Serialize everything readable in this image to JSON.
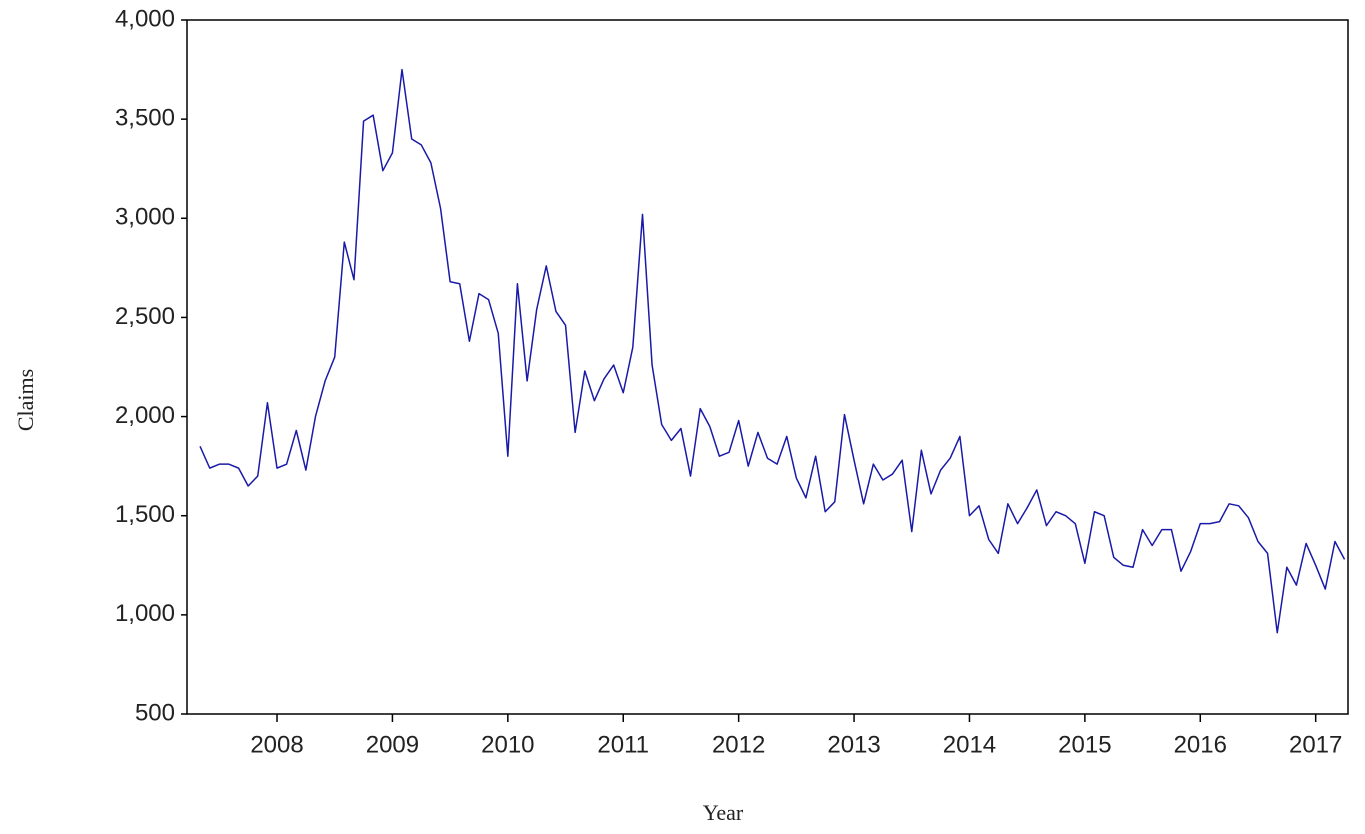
{
  "chart_data": {
    "type": "line",
    "x_label": "Year",
    "y_label": "Claims",
    "xlim": [
      2007.72,
      2017.78
    ],
    "xticks": [
      {
        "value": 2008.5,
        "label": "2008"
      },
      {
        "value": 2009.5,
        "label": "2009"
      },
      {
        "value": 2010.5,
        "label": "2010"
      },
      {
        "value": 2011.5,
        "label": "2011"
      },
      {
        "value": 2012.5,
        "label": "2012"
      },
      {
        "value": 2013.5,
        "label": "2013"
      },
      {
        "value": 2014.5,
        "label": "2014"
      },
      {
        "value": 2015.5,
        "label": "2015"
      },
      {
        "value": 2016.5,
        "label": "2016"
      },
      {
        "value": 2017.5,
        "label": "2017"
      }
    ],
    "ylim": [
      500,
      4000
    ],
    "yticks": [
      {
        "value": 500,
        "label": "500"
      },
      {
        "value": 1000,
        "label": "1,000"
      },
      {
        "value": 1500,
        "label": "1,500"
      },
      {
        "value": 2000,
        "label": "2,000"
      },
      {
        "value": 2500,
        "label": "2,500"
      },
      {
        "value": 3000,
        "label": "3,000"
      },
      {
        "value": 3500,
        "label": "3,500"
      },
      {
        "value": 4000,
        "label": "4,000"
      }
    ],
    "grid": false,
    "x": [
      2007.833,
      2007.917,
      2008.0,
      2008.083,
      2008.167,
      2008.25,
      2008.333,
      2008.417,
      2008.5,
      2008.583,
      2008.667,
      2008.75,
      2008.833,
      2008.917,
      2009.0,
      2009.083,
      2009.167,
      2009.25,
      2009.333,
      2009.417,
      2009.5,
      2009.583,
      2009.667,
      2009.75,
      2009.833,
      2009.917,
      2010.0,
      2010.083,
      2010.167,
      2010.25,
      2010.333,
      2010.417,
      2010.5,
      2010.583,
      2010.667,
      2010.75,
      2010.833,
      2010.917,
      2011.0,
      2011.083,
      2011.167,
      2011.25,
      2011.333,
      2011.417,
      2011.5,
      2011.583,
      2011.667,
      2011.75,
      2011.833,
      2011.917,
      2012.0,
      2012.083,
      2012.167,
      2012.25,
      2012.333,
      2012.417,
      2012.5,
      2012.583,
      2012.667,
      2012.75,
      2012.833,
      2012.917,
      2013.0,
      2013.083,
      2013.167,
      2013.25,
      2013.333,
      2013.417,
      2013.5,
      2013.583,
      2013.667,
      2013.75,
      2013.833,
      2013.917,
      2014.0,
      2014.083,
      2014.167,
      2014.25,
      2014.333,
      2014.417,
      2014.5,
      2014.583,
      2014.667,
      2014.75,
      2014.833,
      2014.917,
      2015.0,
      2015.083,
      2015.167,
      2015.25,
      2015.333,
      2015.417,
      2015.5,
      2015.583,
      2015.667,
      2015.75,
      2015.833,
      2015.917,
      2016.0,
      2016.083,
      2016.167,
      2016.25,
      2016.333,
      2016.417,
      2016.5,
      2016.583,
      2016.667,
      2016.75,
      2016.833,
      2016.917,
      2017.0,
      2017.083,
      2017.167,
      2017.25,
      2017.333,
      2017.417,
      2017.5,
      2017.583,
      2017.667,
      2017.75
    ],
    "series": [
      {
        "color": "#1a1aa8",
        "values": [
          1850,
          1740,
          1760,
          1760,
          1740,
          1650,
          1700,
          2070,
          1740,
          1760,
          1930,
          1730,
          2000,
          2180,
          2300,
          2880,
          2690,
          3490,
          3520,
          3240,
          3330,
          3750,
          3400,
          3370,
          3280,
          3050,
          2680,
          2670,
          2380,
          2620,
          2590,
          2420,
          1800,
          2670,
          2180,
          2540,
          2760,
          2530,
          2460,
          1920,
          2230,
          2080,
          2190,
          2260,
          2120,
          2350,
          3020,
          2260,
          1960,
          1880,
          1940,
          1700,
          2040,
          1950,
          1800,
          1820,
          1980,
          1750,
          1920,
          1790,
          1760,
          1900,
          1690,
          1590,
          1800,
          1520,
          1570,
          2010,
          1780,
          1560,
          1760,
          1680,
          1710,
          1780,
          1420,
          1830,
          1610,
          1730,
          1790,
          1900,
          1500,
          1550,
          1380,
          1310,
          1560,
          1460,
          1540,
          1630,
          1450,
          1520,
          1500,
          1460,
          1260,
          1520,
          1500,
          1290,
          1250,
          1240,
          1430,
          1350,
          1430,
          1430,
          1220,
          1320,
          1460,
          1460,
          1470,
          1560,
          1550,
          1490,
          1370,
          1310,
          910,
          1240,
          1150,
          1360,
          1250,
          1130,
          1370,
          1280
        ]
      }
    ]
  }
}
